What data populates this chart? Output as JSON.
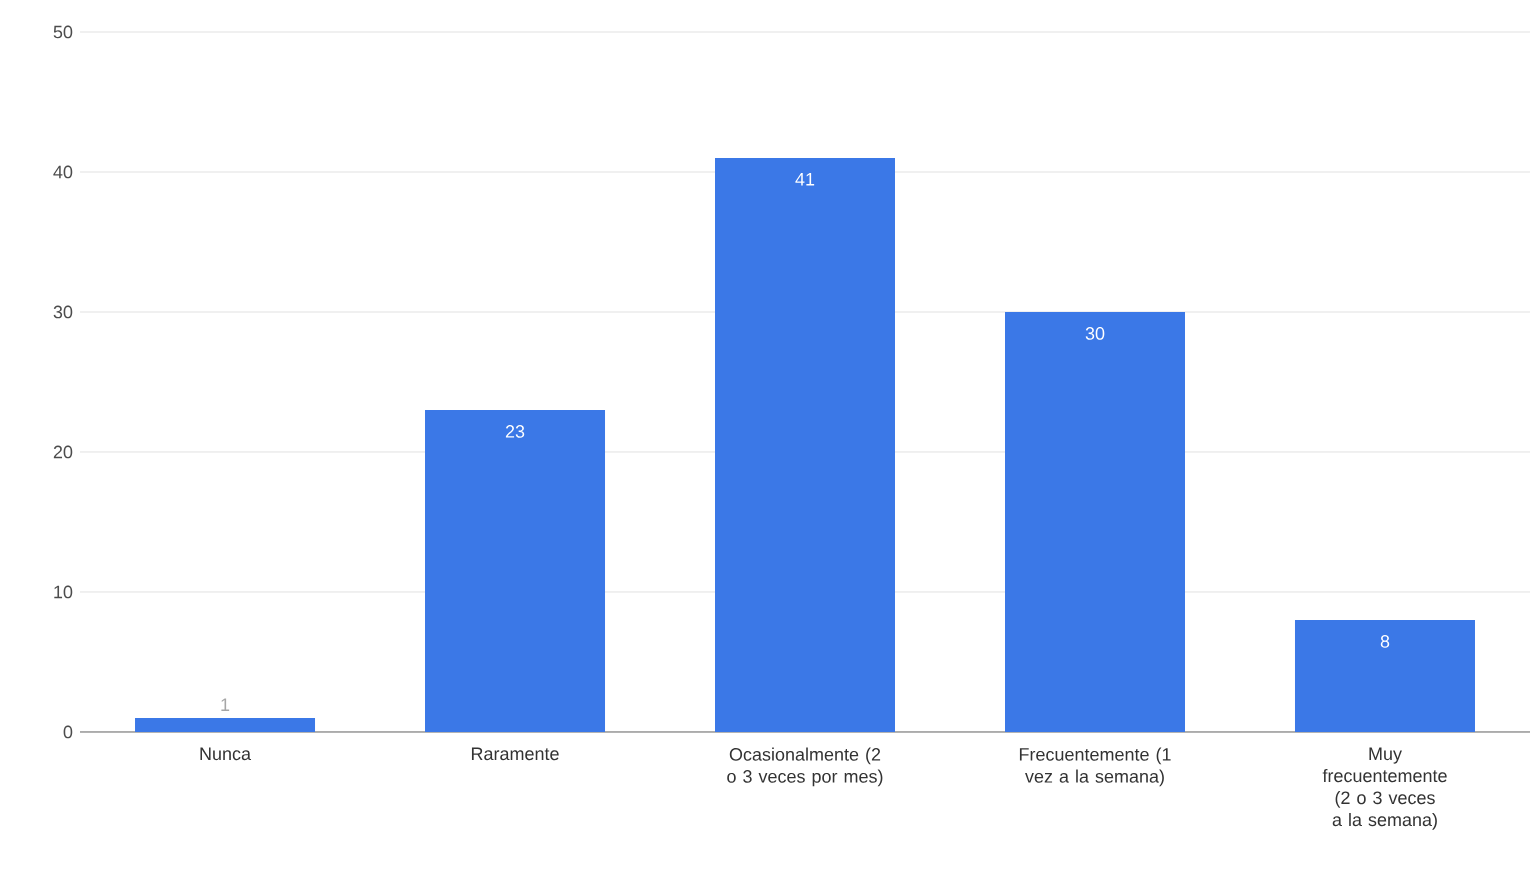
{
  "chart_data": {
    "type": "bar",
    "categories": [
      "Nunca",
      "Raramente",
      "Ocasionalmente (2 o 3 veces por mes)",
      "Frecuentemente (1 vez a la semana)",
      "Muy frecuentemente (2 o 3 veces a la semana)"
    ],
    "values": [
      1,
      23,
      41,
      30,
      8
    ],
    "color": "#3b78e7",
    "ylim": [
      0,
      50
    ],
    "yticks": [
      0,
      10,
      20,
      30,
      40,
      50
    ],
    "grid": "y",
    "data_labels": true
  }
}
